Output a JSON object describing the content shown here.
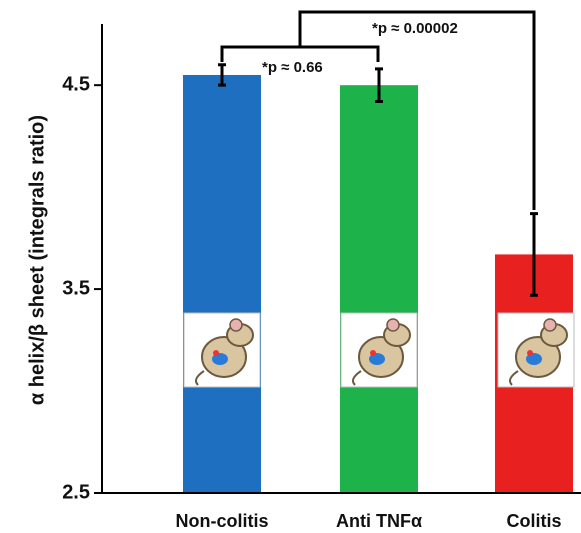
{
  "chart_data": {
    "type": "bar",
    "y_label": "α helix/β sheet (integrals ratio)",
    "categories": [
      "Non-colitis",
      "Anti TNFα",
      "Colitis"
    ],
    "values": [
      4.55,
      4.5,
      3.67
    ],
    "errors": [
      0.05,
      0.08,
      0.2
    ],
    "colors": [
      "#1f6fc0",
      "#1db34a",
      "#e8201f"
    ],
    "ylim": [
      2.5,
      4.8
    ],
    "yticks": [
      2.5,
      3.5,
      4.5
    ],
    "annotations": [
      "*p ≈ 0.66",
      "*p ≈ 0.00002"
    ]
  }
}
